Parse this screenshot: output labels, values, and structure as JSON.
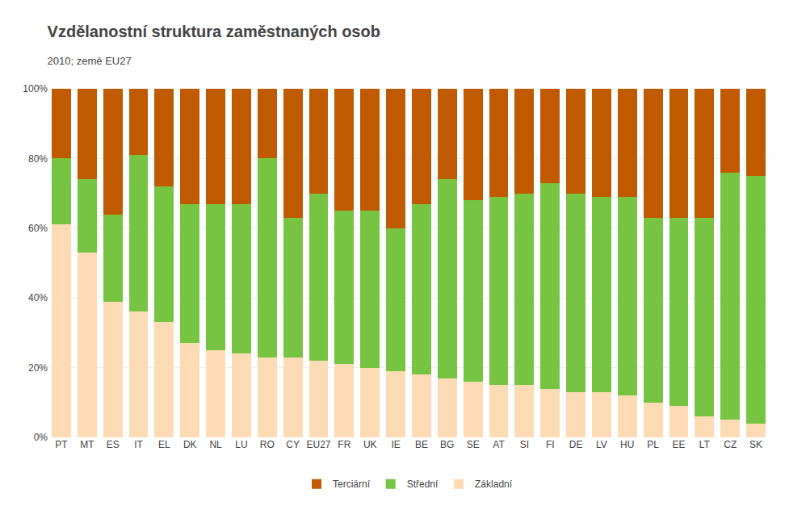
{
  "chart_data": {
    "type": "bar",
    "stacked": true,
    "title": "Vzdělanostní struktura zaměstnaných osob",
    "subtitle": "2010; země EU27",
    "categories": [
      "PT",
      "MT",
      "ES",
      "IT",
      "EL",
      "DK",
      "NL",
      "LU",
      "RO",
      "CY",
      "EU27",
      "FR",
      "UK",
      "IE",
      "BE",
      "BG",
      "SE",
      "AT",
      "SI",
      "FI",
      "DE",
      "LV",
      "HU",
      "PL",
      "EE",
      "LT",
      "CZ",
      "SK"
    ],
    "series": [
      {
        "name": "Základní",
        "color": "#FDDBB4",
        "values": [
          61,
          53,
          39,
          36,
          33,
          27,
          25,
          24,
          23,
          23,
          22,
          21,
          20,
          19,
          18,
          17,
          16,
          15,
          15,
          14,
          13,
          13,
          12,
          10,
          9,
          6,
          5,
          4
        ]
      },
      {
        "name": "Střední",
        "color": "#76C442",
        "values": [
          19,
          21,
          25,
          45,
          39,
          40,
          42,
          43,
          57,
          40,
          48,
          44,
          45,
          41,
          49,
          57,
          52,
          54,
          55,
          59,
          57,
          56,
          57,
          53,
          54,
          57,
          71,
          71
        ]
      },
      {
        "name": "Terciární",
        "color": "#C05A00",
        "values": [
          20,
          26,
          36,
          19,
          28,
          33,
          33,
          33,
          20,
          37,
          30,
          35,
          35,
          40,
          33,
          26,
          32,
          31,
          30,
          27,
          30,
          31,
          31,
          37,
          37,
          37,
          24,
          25
        ]
      }
    ],
    "ylim": [
      0,
      100
    ],
    "yticks": [
      {
        "value": 0,
        "label": "0%"
      },
      {
        "value": 20,
        "label": "20%"
      },
      {
        "value": 40,
        "label": "40%"
      },
      {
        "value": 60,
        "label": "60%"
      },
      {
        "value": 80,
        "label": "80%"
      },
      {
        "value": 100,
        "label": "100%"
      }
    ],
    "grid": true,
    "legend": "bottom"
  }
}
